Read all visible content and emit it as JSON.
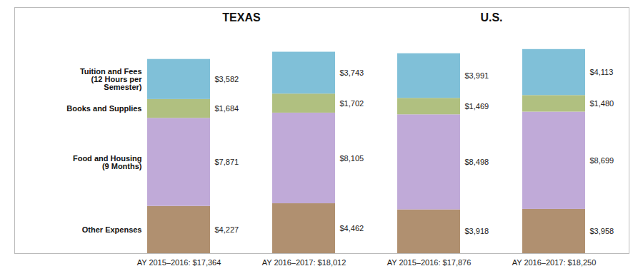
{
  "chart_data": {
    "type": "bar",
    "stacked": true,
    "data_labels": true,
    "tick_labels": "x",
    "grid": false,
    "categories": [
      "AY 2015–2016: $17,364",
      "AY 2016–2017: $18,012",
      "AY 2015–2016: $17,876",
      "AY 2016–2017: $18,250"
    ],
    "series": [
      {
        "name": "Other Expenses",
        "color": "#b09070",
        "values": [
          4227,
          4462,
          3918,
          3958
        ],
        "value_labels": [
          "$4,227",
          "$4,462",
          "$3,918",
          "$3,958"
        ]
      },
      {
        "name": "Food and Housing\n(9 Months)",
        "color": "#c0aad8",
        "values": [
          7871,
          8105,
          8498,
          8699
        ],
        "value_labels": [
          "$7,871",
          "$8,105",
          "$8,498",
          "$8,699"
        ]
      },
      {
        "name": "Books and Supplies",
        "color": "#b0c080",
        "values": [
          1684,
          1702,
          1469,
          1480
        ],
        "value_labels": [
          "$1,684",
          "$1,702",
          "$1,469",
          "$1,480"
        ]
      },
      {
        "name": "Tuition and Fees\n(12 Hours per\nSemester)",
        "color": "#80c0d8",
        "values": [
          3582,
          3743,
          3991,
          4113
        ],
        "value_labels": [
          "$3,582",
          "$3,743",
          "$3,991",
          "$4,113"
        ]
      }
    ],
    "ylim": [
      0,
      22000
    ],
    "annotations": [
      {
        "text": "TEXAS",
        "categories": [
          "AY 2015–2016: $17,364",
          "AY 2016–2017: $18,012"
        ]
      },
      {
        "text": "U.S.",
        "categories": [
          "AY 2015–2016: $17,876",
          "AY 2016–2017: $18,250"
        ]
      }
    ]
  }
}
